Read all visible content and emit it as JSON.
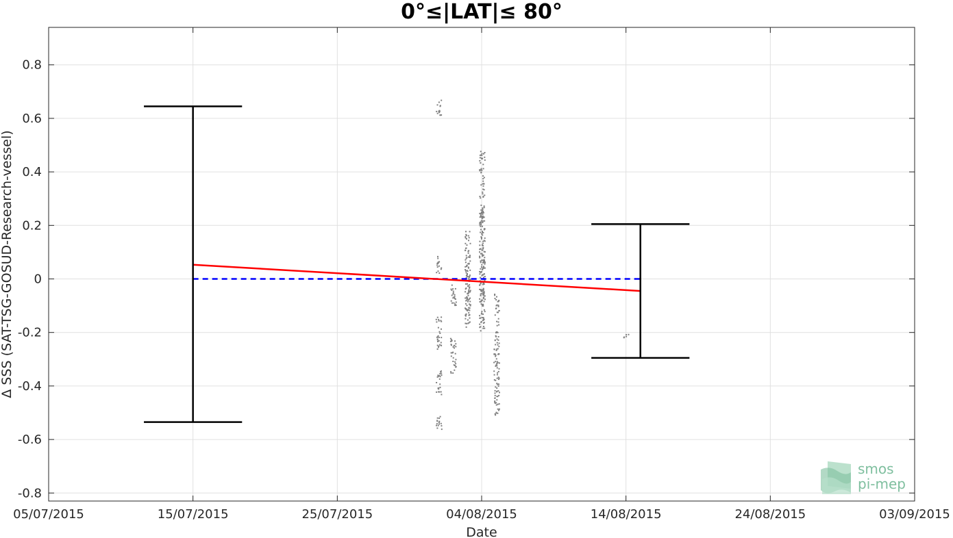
{
  "chart_data": {
    "type": "scatter",
    "title": "0°≤|LAT|≤ 80°",
    "xlabel": "Date",
    "ylabel": "Δ SSS (SAT-TSG-GOSUD-Research-vessel)",
    "x_ticks": [
      "05/07/2015",
      "15/07/2015",
      "25/07/2015",
      "04/08/2015",
      "14/08/2015",
      "24/08/2015",
      "03/09/2015"
    ],
    "xlim": [
      "05/07/2015",
      "03/09/2015"
    ],
    "y_ticks": [
      "0.8",
      "0.6",
      "0.4",
      "0.2",
      "0",
      "-0.2",
      "-0.4",
      "-0.6",
      "-0.8"
    ],
    "ylim": [
      -0.83,
      0.94
    ],
    "grid": true,
    "colors": {
      "scatter": "#808080",
      "trend": "#ff0000",
      "zero_line": "#0000ff",
      "error_bars": "#000000",
      "grid": "#e0e0e0",
      "logo": "#7fbf9f"
    },
    "error_bars": [
      {
        "x": "15/07/2015",
        "upper": 0.645,
        "lower": -0.535,
        "cap_halfwidth_days": 3.4
      },
      {
        "x": "15/08/2015",
        "upper": 0.205,
        "lower": -0.295,
        "cap_halfwidth_days": 3.4
      }
    ],
    "trend_line": {
      "x": [
        "15/07/2015",
        "15/08/2015"
      ],
      "y": [
        0.053,
        -0.045
      ]
    },
    "zero_line": {
      "x": [
        "15/07/2015",
        "15/08/2015"
      ],
      "y": [
        0,
        0
      ]
    },
    "scatter_clusters": [
      {
        "x": "01/08/2015",
        "y_ranges": [
          [
            0.61,
            0.67
          ],
          [
            0.02,
            0.09
          ],
          [
            -0.26,
            -0.14
          ],
          [
            -0.43,
            -0.34
          ],
          [
            -0.56,
            -0.5
          ]
        ]
      },
      {
        "x": "02/08/2015",
        "y_ranges": [
          [
            -0.35,
            -0.22
          ],
          [
            -0.1,
            0.0
          ]
        ]
      },
      {
        "x": "03/08/2015",
        "y_ranges": [
          [
            -0.18,
            0.18
          ],
          [
            -0.07,
            0.1
          ]
        ]
      },
      {
        "x": "04/08/2015",
        "y_ranges": [
          [
            -0.1,
            0.28
          ],
          [
            0.3,
            0.48
          ],
          [
            -0.2,
            0.25
          ]
        ]
      },
      {
        "x": "05/08/2015",
        "y_ranges": [
          [
            -0.51,
            -0.05
          ]
        ]
      },
      {
        "x": "14/08/2015",
        "y_ranges": [
          [
            -0.225,
            -0.205
          ]
        ]
      }
    ],
    "logo": {
      "line1": "smos",
      "line2": "pi-mep"
    }
  }
}
